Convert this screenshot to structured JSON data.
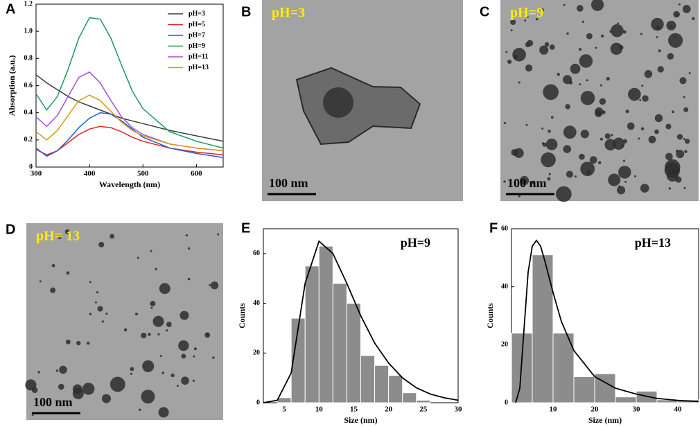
{
  "chart_data": [
    {
      "type": "line",
      "panel": "A",
      "xlabel": "Wavelength  (nm)",
      "ylabel": "Absorption (a.u.)",
      "x": [
        300,
        320,
        340,
        360,
        380,
        400,
        420,
        440,
        460,
        480,
        500,
        550,
        600,
        650
      ],
      "xlim": [
        300,
        650
      ],
      "xticks": [
        300,
        400,
        500,
        600
      ],
      "ylim": [
        0,
        1.2
      ],
      "yticks": [
        0,
        0.2,
        0.4,
        0.6,
        0.8,
        {
          "value": 1,
          "label": "1.0"
        },
        1.2
      ],
      "legend": "upper right",
      "series": [
        {
          "name": "pH=3",
          "color": "#3c3c3c",
          "values": [
            0.68,
            0.62,
            0.57,
            0.52,
            0.48,
            0.45,
            0.42,
            0.39,
            0.36,
            0.34,
            0.32,
            0.27,
            0.23,
            0.19
          ]
        },
        {
          "name": "pH=5",
          "color": "#e32222",
          "values": [
            0.13,
            0.09,
            0.12,
            0.18,
            0.24,
            0.28,
            0.3,
            0.29,
            0.26,
            0.22,
            0.19,
            0.14,
            0.11,
            0.09
          ]
        },
        {
          "name": "pH=7",
          "color": "#1f5fd6",
          "values": [
            0.14,
            0.08,
            0.12,
            0.2,
            0.29,
            0.36,
            0.4,
            0.39,
            0.34,
            0.28,
            0.22,
            0.14,
            0.1,
            0.07
          ]
        },
        {
          "name": "pH=9",
          "color": "#1a9a55",
          "values": [
            0.54,
            0.42,
            0.52,
            0.72,
            0.95,
            1.1,
            1.09,
            0.95,
            0.75,
            0.56,
            0.43,
            0.26,
            0.19,
            0.14
          ]
        },
        {
          "name": "pH=11",
          "color": "#a64de0",
          "values": [
            0.37,
            0.3,
            0.38,
            0.52,
            0.66,
            0.7,
            0.62,
            0.49,
            0.37,
            0.29,
            0.24,
            0.17,
            0.14,
            0.12
          ]
        },
        {
          "name": "pH=13",
          "color": "#d69a10",
          "values": [
            0.26,
            0.2,
            0.27,
            0.38,
            0.49,
            0.53,
            0.49,
            0.41,
            0.33,
            0.27,
            0.23,
            0.17,
            0.14,
            0.12
          ]
        }
      ]
    },
    {
      "type": "histogram",
      "panel": "E",
      "annotation": "pH=9",
      "xlabel": "Size (nm)",
      "ylabel": "Counts",
      "bins": [
        4,
        6,
        8,
        10,
        12,
        14,
        16,
        18,
        20,
        22,
        24,
        26
      ],
      "values": [
        2,
        34,
        55,
        63,
        48,
        40,
        19,
        15,
        11,
        4,
        1
      ],
      "color": "#8c8c8c",
      "fit_x": [
        2,
        4,
        6,
        8,
        10,
        12,
        14,
        16,
        18,
        20,
        22,
        24,
        26,
        28,
        30
      ],
      "fit_y": [
        0,
        1,
        12,
        48,
        65,
        60,
        48,
        35,
        24,
        16,
        10,
        6,
        3.5,
        2,
        1
      ],
      "fit_color": "#000000",
      "xlim": [
        2,
        30
      ],
      "xticks": [
        5,
        10,
        15,
        20,
        25,
        30
      ],
      "ylim": [
        0,
        70
      ],
      "yticks": [
        0,
        20,
        40,
        60
      ]
    },
    {
      "type": "histogram",
      "panel": "F",
      "annotation": "pH=13",
      "xlabel": "Size (nm)",
      "ylabel": "Counts",
      "bins": [
        0,
        5,
        10,
        15,
        20,
        25,
        30,
        35,
        40,
        45
      ],
      "values": [
        24,
        51,
        24,
        9,
        10,
        2,
        4,
        1,
        1
      ],
      "color": "#8c8c8c",
      "fit_x": [
        1,
        2,
        3,
        4,
        5,
        6,
        7,
        8,
        10,
        12,
        15,
        20,
        25,
        30,
        35,
        40,
        45
      ],
      "fit_y": [
        0,
        5,
        25,
        45,
        54,
        56,
        54,
        49,
        38,
        28,
        18,
        9,
        5,
        3,
        1.5,
        0.8,
        0.4
      ],
      "fit_color": "#000000",
      "xlim": [
        0,
        45
      ],
      "xticks": [
        10,
        20,
        30,
        40
      ],
      "ylim": [
        0,
        60
      ],
      "yticks": [
        0,
        20,
        40,
        60
      ]
    }
  ],
  "images": [
    {
      "panel": "B",
      "label": "pH=3",
      "scale_bar": "100 nm"
    },
    {
      "panel": "C",
      "label": "pH=9",
      "scale_bar": "100 nm"
    },
    {
      "panel": "D",
      "label": "pH= 13",
      "scale_bar": "100 nm"
    }
  ]
}
